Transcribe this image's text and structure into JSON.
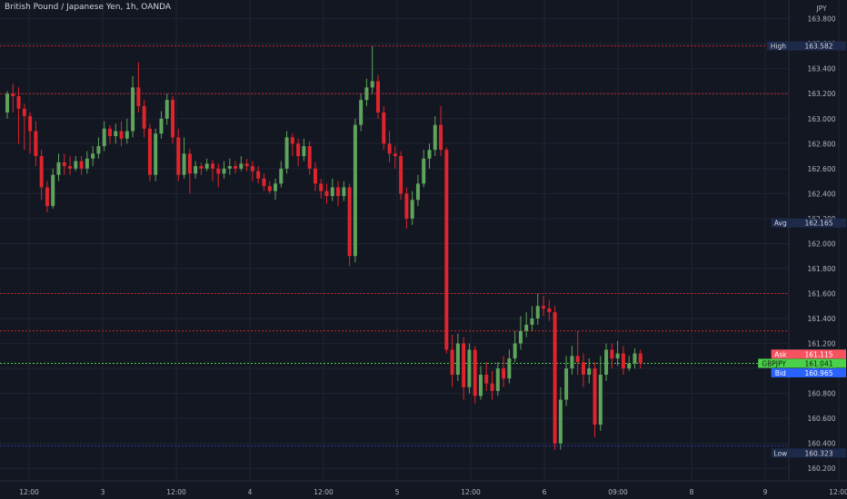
{
  "title": "British Pound / Japanese Yen, 1h, OANDA",
  "currency": "JPY",
  "colors": {
    "background": "#131722",
    "grid": "#1f2433",
    "up": "#5fa45c",
    "down": "#e0242c",
    "resistance": "#c8232f",
    "support": "#3036a6",
    "price_line": "#4ad24a",
    "axis_text": "#b2b5be"
  },
  "chart_data": {
    "type": "candlestick",
    "symbol": "GBPJPY",
    "timeframe": "1h",
    "ylim": [
      160.1,
      163.95
    ],
    "y_ticks": [
      "160.200",
      "160.400",
      "160.600",
      "160.800",
      "161.000",
      "161.200",
      "161.400",
      "161.600",
      "161.800",
      "162.000",
      "162.200",
      "162.400",
      "162.600",
      "162.800",
      "163.000",
      "163.200",
      "163.400",
      "163.600",
      "163.800"
    ],
    "x_ticks": [
      "12:00",
      "3",
      "12:00",
      "4",
      "12:00",
      "5",
      "12:00",
      "6",
      "09:00",
      "8",
      "9",
      "12:00"
    ],
    "candles": [
      [
        163.05,
        163.2,
        163.22,
        163.0
      ],
      [
        163.2,
        163.18,
        163.28,
        163.05
      ],
      [
        163.18,
        163.08,
        163.25,
        162.8
      ],
      [
        163.08,
        163.02,
        163.12,
        162.75
      ],
      [
        163.02,
        162.9,
        163.05,
        162.72
      ],
      [
        162.9,
        162.7,
        162.98,
        162.62
      ],
      [
        162.7,
        162.45,
        162.75,
        162.35
      ],
      [
        162.45,
        162.3,
        162.5,
        162.25
      ],
      [
        162.3,
        162.55,
        162.6,
        162.28
      ],
      [
        162.55,
        162.65,
        162.72,
        162.5
      ],
      [
        162.65,
        162.62,
        162.72,
        162.55
      ],
      [
        162.62,
        162.6,
        162.7,
        162.55
      ],
      [
        162.6,
        162.66,
        162.7,
        162.58
      ],
      [
        162.66,
        162.6,
        162.7,
        162.55
      ],
      [
        162.6,
        162.68,
        162.74,
        162.56
      ],
      [
        162.68,
        162.72,
        162.78,
        162.62
      ],
      [
        162.72,
        162.78,
        162.85,
        162.68
      ],
      [
        162.78,
        162.92,
        162.98,
        162.74
      ],
      [
        162.92,
        162.86,
        162.95,
        162.8
      ],
      [
        162.86,
        162.9,
        162.96,
        162.8
      ],
      [
        162.9,
        162.84,
        162.98,
        162.78
      ],
      [
        162.84,
        162.9,
        163.0,
        162.8
      ],
      [
        162.9,
        163.25,
        163.34,
        162.85
      ],
      [
        163.25,
        163.1,
        163.45,
        163.05
      ],
      [
        163.1,
        162.92,
        163.15,
        162.85
      ],
      [
        162.92,
        162.55,
        162.96,
        162.5
      ],
      [
        162.55,
        162.88,
        162.92,
        162.5
      ],
      [
        162.88,
        163.0,
        163.06,
        162.84
      ],
      [
        163.0,
        163.15,
        163.2,
        162.95
      ],
      [
        163.15,
        162.85,
        163.18,
        162.8
      ],
      [
        162.85,
        162.55,
        162.92,
        162.5
      ],
      [
        162.55,
        162.72,
        162.85,
        162.52
      ],
      [
        162.72,
        162.56,
        162.76,
        162.4
      ],
      [
        162.56,
        162.62,
        162.66,
        162.52
      ],
      [
        162.62,
        162.6,
        162.65,
        162.55
      ],
      [
        162.6,
        162.64,
        162.68,
        162.58
      ],
      [
        162.64,
        162.6,
        162.67,
        162.5
      ],
      [
        162.6,
        162.56,
        162.64,
        162.45
      ],
      [
        162.56,
        162.6,
        162.66,
        162.52
      ],
      [
        162.6,
        162.62,
        162.68,
        162.55
      ],
      [
        162.62,
        162.6,
        162.66,
        162.56
      ],
      [
        162.6,
        162.64,
        162.7,
        162.58
      ],
      [
        162.64,
        162.62,
        162.68,
        162.58
      ],
      [
        162.62,
        162.58,
        162.66,
        162.5
      ],
      [
        162.58,
        162.52,
        162.62,
        162.48
      ],
      [
        162.52,
        162.46,
        162.56,
        162.42
      ],
      [
        162.46,
        162.42,
        162.5,
        162.4
      ],
      [
        162.42,
        162.48,
        162.52,
        162.35
      ],
      [
        162.48,
        162.6,
        162.66,
        162.45
      ],
      [
        162.6,
        162.85,
        162.9,
        162.56
      ],
      [
        162.85,
        162.8,
        162.88,
        162.7
      ],
      [
        162.8,
        162.7,
        162.84,
        162.62
      ],
      [
        162.7,
        162.78,
        162.84,
        162.66
      ],
      [
        162.78,
        162.6,
        162.82,
        162.55
      ],
      [
        162.6,
        162.48,
        162.65,
        162.42
      ],
      [
        162.48,
        162.42,
        162.52,
        162.36
      ],
      [
        162.42,
        162.38,
        162.48,
        162.32
      ],
      [
        162.38,
        162.45,
        162.52,
        162.34
      ],
      [
        162.45,
        162.38,
        162.5,
        162.3
      ],
      [
        162.38,
        162.45,
        162.5,
        162.34
      ],
      [
        162.45,
        161.9,
        162.48,
        161.82
      ],
      [
        161.9,
        162.95,
        163.0,
        161.85
      ],
      [
        162.95,
        163.15,
        163.2,
        162.9
      ],
      [
        163.15,
        163.25,
        163.32,
        163.1
      ],
      [
        163.25,
        163.3,
        163.58,
        163.2
      ],
      [
        163.3,
        163.05,
        163.35,
        163.0
      ],
      [
        163.05,
        162.8,
        163.1,
        162.75
      ],
      [
        162.8,
        162.72,
        162.9,
        162.65
      ],
      [
        162.72,
        162.7,
        162.78,
        162.6
      ],
      [
        162.7,
        162.4,
        162.74,
        162.35
      ],
      [
        162.4,
        162.2,
        162.45,
        162.12
      ],
      [
        162.2,
        162.35,
        162.42,
        162.15
      ],
      [
        162.35,
        162.48,
        162.55,
        162.3
      ],
      [
        162.48,
        162.68,
        162.75,
        162.45
      ],
      [
        162.68,
        162.75,
        162.8,
        162.6
      ],
      [
        162.75,
        162.95,
        163.02,
        162.7
      ],
      [
        162.95,
        162.75,
        163.1,
        162.7
      ],
      [
        162.75,
        161.15,
        162.77,
        161.12
      ],
      [
        161.15,
        160.95,
        161.27,
        160.85
      ],
      [
        160.95,
        161.2,
        161.28,
        160.9
      ],
      [
        161.2,
        160.85,
        161.25,
        160.75
      ],
      [
        160.85,
        161.15,
        161.2,
        160.8
      ],
      [
        161.15,
        160.78,
        161.18,
        160.72
      ],
      [
        160.78,
        160.95,
        161.02,
        160.75
      ],
      [
        160.95,
        160.88,
        161.05,
        160.82
      ],
      [
        160.88,
        160.82,
        160.98,
        160.75
      ],
      [
        160.82,
        161.0,
        161.05,
        160.78
      ],
      [
        161.0,
        160.92,
        161.1,
        160.85
      ],
      [
        160.92,
        161.08,
        161.15,
        160.88
      ],
      [
        161.08,
        161.2,
        161.3,
        161.05
      ],
      [
        161.2,
        161.3,
        161.42,
        161.15
      ],
      [
        161.3,
        161.35,
        161.45,
        161.25
      ],
      [
        161.35,
        161.4,
        161.5,
        161.3
      ],
      [
        161.4,
        161.5,
        161.6,
        161.35
      ],
      [
        161.5,
        161.48,
        161.58,
        161.42
      ],
      [
        161.48,
        161.45,
        161.55,
        161.38
      ],
      [
        161.45,
        160.4,
        161.5,
        160.35
      ],
      [
        160.4,
        160.75,
        160.85,
        160.35
      ],
      [
        160.75,
        161.0,
        161.1,
        160.7
      ],
      [
        161.0,
        161.1,
        161.18,
        160.95
      ],
      [
        161.1,
        161.05,
        161.3,
        160.95
      ],
      [
        161.05,
        160.95,
        161.12,
        160.85
      ],
      [
        160.95,
        161.0,
        161.08,
        160.88
      ],
      [
        161.0,
        160.55,
        161.05,
        160.45
      ],
      [
        160.55,
        160.95,
        161.1,
        160.5
      ],
      [
        160.95,
        161.15,
        161.2,
        160.9
      ],
      [
        161.15,
        161.08,
        161.2,
        161.0
      ],
      [
        161.08,
        161.12,
        161.22,
        161.02
      ],
      [
        161.12,
        161.0,
        161.18,
        160.95
      ],
      [
        161.0,
        161.04,
        161.1,
        160.98
      ],
      [
        161.04,
        161.12,
        161.16,
        161.0
      ],
      [
        161.12,
        161.04,
        161.15,
        161.0
      ]
    ],
    "levels": [
      {
        "kind": "resistance",
        "value": 163.582
      },
      {
        "kind": "resistance",
        "value": 163.2
      },
      {
        "kind": "resistance",
        "value": 161.6
      },
      {
        "kind": "resistance",
        "value": 161.3
      },
      {
        "kind": "current",
        "value": 161.041
      },
      {
        "kind": "support",
        "value": 160.38
      }
    ],
    "price_labels": [
      {
        "label": "High",
        "value": "163.582",
        "price": 163.582,
        "color": "#1e2a4a",
        "text_color": "#d1d4dc"
      },
      {
        "label": "Avg",
        "value": "162.165",
        "price": 162.165,
        "color": "#1e2a4a",
        "text_color": "#d1d4dc"
      },
      {
        "label": "Ask",
        "value": "161.115",
        "price": 161.115,
        "color": "#f7525f",
        "text_color": "#ffffff"
      },
      {
        "label": "GBPJPY",
        "value": "161.041",
        "price": 161.041,
        "color": "#4ad24a",
        "text_color": "#0d1a0d"
      },
      {
        "label": "Bid",
        "value": "160.965",
        "price": 160.965,
        "color": "#2962ff",
        "text_color": "#ffffff"
      },
      {
        "label": "Low",
        "value": "160.323",
        "price": 160.323,
        "color": "#1e2a4a",
        "text_color": "#d1d4dc"
      }
    ]
  }
}
